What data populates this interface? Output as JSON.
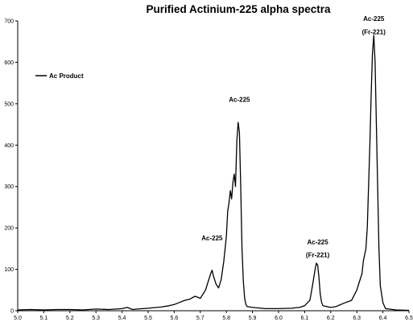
{
  "chart_data": {
    "type": "line",
    "title": "Purified Actinium-225 alpha spectra",
    "xlabel": "",
    "ylabel": "",
    "xlim": [
      5.0,
      6.5
    ],
    "ylim": [
      0,
      700
    ],
    "grid": false,
    "legend_position": "top-left",
    "x_ticks": [
      "5.0",
      "5.1",
      "5.2",
      "5.3",
      "5.4",
      "5.5",
      "5.6",
      "5.7",
      "5.8",
      "5.9",
      "6.0",
      "6.1",
      "6.2",
      "6.3",
      "6.4",
      "6.5"
    ],
    "y_ticks": [
      "0",
      "100",
      "200",
      "300",
      "400",
      "500",
      "600",
      "700"
    ],
    "series": [
      {
        "name": "Ac Product",
        "color": "#000000",
        "points": [
          [
            5.0,
            2
          ],
          [
            5.05,
            3
          ],
          [
            5.1,
            2
          ],
          [
            5.15,
            3
          ],
          [
            5.2,
            3
          ],
          [
            5.25,
            2
          ],
          [
            5.3,
            4
          ],
          [
            5.35,
            3
          ],
          [
            5.4,
            5
          ],
          [
            5.42,
            8
          ],
          [
            5.44,
            3
          ],
          [
            5.46,
            4
          ],
          [
            5.5,
            6
          ],
          [
            5.55,
            9
          ],
          [
            5.58,
            12
          ],
          [
            5.6,
            15
          ],
          [
            5.62,
            20
          ],
          [
            5.64,
            25
          ],
          [
            5.66,
            28
          ],
          [
            5.68,
            35
          ],
          [
            5.7,
            30
          ],
          [
            5.72,
            50
          ],
          [
            5.73,
            70
          ],
          [
            5.74,
            90
          ],
          [
            5.745,
            98
          ],
          [
            5.75,
            85
          ],
          [
            5.76,
            65
          ],
          [
            5.77,
            55
          ],
          [
            5.78,
            75
          ],
          [
            5.79,
            120
          ],
          [
            5.8,
            180
          ],
          [
            5.805,
            240
          ],
          [
            5.81,
            260
          ],
          [
            5.815,
            290
          ],
          [
            5.82,
            270
          ],
          [
            5.825,
            310
          ],
          [
            5.83,
            330
          ],
          [
            5.835,
            300
          ],
          [
            5.84,
            410
          ],
          [
            5.845,
            455
          ],
          [
            5.85,
            430
          ],
          [
            5.855,
            300
          ],
          [
            5.86,
            150
          ],
          [
            5.865,
            70
          ],
          [
            5.87,
            30
          ],
          [
            5.875,
            15
          ],
          [
            5.88,
            10
          ],
          [
            5.9,
            8
          ],
          [
            5.95,
            5
          ],
          [
            6.0,
            5
          ],
          [
            6.05,
            6
          ],
          [
            6.08,
            8
          ],
          [
            6.1,
            12
          ],
          [
            6.12,
            25
          ],
          [
            6.13,
            60
          ],
          [
            6.14,
            100
          ],
          [
            6.145,
            115
          ],
          [
            6.15,
            110
          ],
          [
            6.155,
            80
          ],
          [
            6.16,
            40
          ],
          [
            6.165,
            20
          ],
          [
            6.17,
            12
          ],
          [
            6.2,
            8
          ],
          [
            6.22,
            10
          ],
          [
            6.25,
            18
          ],
          [
            6.28,
            25
          ],
          [
            6.3,
            50
          ],
          [
            6.31,
            70
          ],
          [
            6.32,
            90
          ],
          [
            6.325,
            120
          ],
          [
            6.33,
            135
          ],
          [
            6.335,
            150
          ],
          [
            6.34,
            200
          ],
          [
            6.345,
            300
          ],
          [
            6.35,
            400
          ],
          [
            6.355,
            520
          ],
          [
            6.36,
            620
          ],
          [
            6.365,
            665
          ],
          [
            6.37,
            600
          ],
          [
            6.375,
            450
          ],
          [
            6.38,
            300
          ],
          [
            6.385,
            150
          ],
          [
            6.39,
            60
          ],
          [
            6.4,
            20
          ],
          [
            6.41,
            5
          ],
          [
            6.45,
            2
          ],
          [
            6.5,
            1
          ]
        ]
      }
    ],
    "annotations": [
      {
        "text": "Ac-225",
        "x": 5.85,
        "y": 505
      },
      {
        "text": "Ac-225",
        "x": 5.745,
        "y": 170
      },
      {
        "text": "Ac-225",
        "x": 6.15,
        "y": 160
      },
      {
        "text": "(Fr-221)",
        "x": 6.15,
        "y": 129
      },
      {
        "text": "Ac-225",
        "x": 6.365,
        "y": 700
      },
      {
        "text": "(Fr-221)",
        "x": 6.365,
        "y": 668
      }
    ]
  }
}
